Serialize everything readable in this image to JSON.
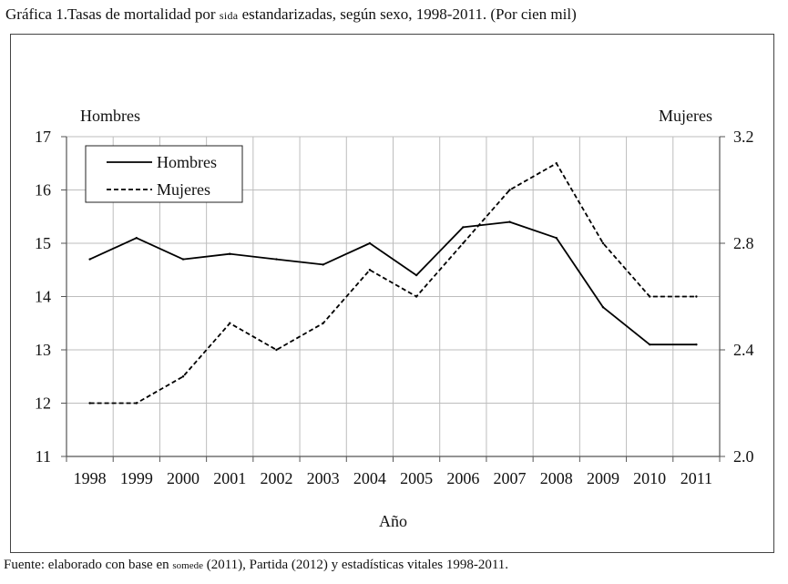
{
  "title": {
    "prefix": "Gráfica 1.Tasas de mortalidad por ",
    "acronym": "sida",
    "suffix": " estandarizadas, según sexo, 1998-2011. (Por cien mil)"
  },
  "source": {
    "prefix": "Fuente: elaborado con base en ",
    "acronym": "somede",
    "suffix": " (2011), Partida (2012) y estadísticas vitales 1998-2011."
  },
  "chart_data": {
    "type": "line",
    "title": "Tasas de mortalidad por SIDA estandarizadas, según sexo, 1998-2011. (Por cien mil)",
    "xlabel": "Año",
    "ylabel": "Hombres",
    "y2label": "Mujeres",
    "categories": [
      "1998",
      "1999",
      "2000",
      "2001",
      "2002",
      "2003",
      "2004",
      "2005",
      "2006",
      "2007",
      "2008",
      "2009",
      "2010",
      "2011"
    ],
    "ylim": [
      11,
      17
    ],
    "yticks": [
      "11",
      "12",
      "13",
      "14",
      "15",
      "16",
      "17"
    ],
    "y2lim": [
      2.0,
      3.2
    ],
    "y2ticks": [
      "2.0",
      "2.4",
      "2.8",
      "3.2"
    ],
    "grid": true,
    "legend": "top-left",
    "series": [
      {
        "name": "Hombres",
        "axis": "left",
        "style": "solid",
        "values": [
          14.7,
          15.1,
          14.7,
          14.8,
          14.7,
          14.6,
          15.0,
          14.4,
          15.3,
          15.4,
          15.1,
          13.8,
          13.1,
          13.1
        ]
      },
      {
        "name": "Mujeres",
        "axis": "right",
        "style": "dashed",
        "values": [
          2.2,
          2.2,
          2.3,
          2.5,
          2.4,
          2.5,
          2.7,
          2.6,
          2.8,
          3.0,
          3.1,
          2.8,
          2.6,
          2.6
        ]
      }
    ]
  }
}
